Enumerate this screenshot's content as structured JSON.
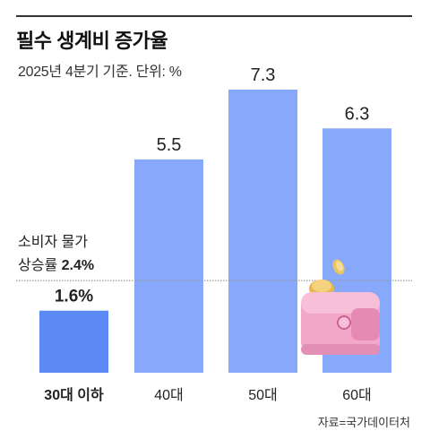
{
  "title": "필수 생계비 증가율",
  "subtitle": "2025년 4분기 기준. 단위: %",
  "source": "자료=국가데이터처",
  "colors": {
    "bar": "#87A8FB",
    "bar_highlight": "#5B8AF5",
    "reference_line": "#9a9a9a",
    "text": "#222222"
  },
  "chart_data": {
    "type": "bar",
    "categories": [
      "30대 이하",
      "40대",
      "50대",
      "60대"
    ],
    "values": [
      1.6,
      5.5,
      7.3,
      6.3
    ],
    "value_labels": [
      "1.6%",
      "5.5",
      "7.3",
      "6.3"
    ],
    "highlight_category": "30대 이하",
    "reference_line": {
      "value": 2.4,
      "label_line1": "소비자 물가",
      "label_line2_prefix": "상승률 ",
      "label_line2_value": "2.4%"
    },
    "ylim": [
      0,
      7.3
    ],
    "grid": false,
    "legend": "none",
    "decoration": "wallet-with-coins-illustration"
  }
}
